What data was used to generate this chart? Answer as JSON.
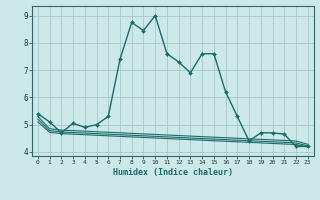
{
  "xlabel": "Humidex (Indice chaleur)",
  "background_color": "#cce8e8",
  "grid_color": "#b8d4d4",
  "line_color": "#1a6b6b",
  "xlim": [
    -0.5,
    23.5
  ],
  "ylim": [
    3.85,
    9.35
  ],
  "yticks": [
    4,
    5,
    6,
    7,
    8,
    9
  ],
  "xticks": [
    0,
    1,
    2,
    3,
    4,
    5,
    6,
    7,
    8,
    9,
    10,
    11,
    12,
    13,
    14,
    15,
    16,
    17,
    18,
    19,
    20,
    21,
    22,
    23
  ],
  "curve1_x": [
    0,
    1,
    2,
    3,
    4,
    5,
    6,
    7,
    8,
    9,
    10,
    11,
    12,
    13,
    14,
    15,
    16,
    17,
    18,
    19,
    20,
    21,
    22,
    23
  ],
  "curve1_y": [
    5.4,
    5.1,
    4.7,
    5.05,
    4.9,
    5.0,
    5.3,
    7.4,
    8.75,
    8.45,
    9.0,
    7.6,
    7.3,
    6.9,
    7.6,
    7.6,
    6.2,
    5.3,
    4.4,
    4.7,
    4.7,
    4.65,
    4.2,
    4.2
  ],
  "curve2_x": [
    0,
    1,
    2,
    3,
    4,
    5,
    6,
    7,
    8,
    9,
    10,
    11,
    12,
    13,
    14,
    15,
    16,
    17,
    18,
    19,
    20,
    21,
    22,
    23
  ],
  "curve2_y": [
    5.3,
    4.85,
    4.8,
    4.78,
    4.76,
    4.74,
    4.72,
    4.7,
    4.68,
    4.66,
    4.64,
    4.62,
    4.6,
    4.58,
    4.56,
    4.54,
    4.52,
    4.5,
    4.48,
    4.46,
    4.44,
    4.42,
    4.4,
    4.28
  ],
  "curve3_x": [
    0,
    1,
    2,
    3,
    4,
    5,
    6,
    7,
    8,
    9,
    10,
    11,
    12,
    13,
    14,
    15,
    16,
    17,
    18,
    19,
    20,
    21,
    22,
    23
  ],
  "curve3_y": [
    5.2,
    4.78,
    4.73,
    4.71,
    4.69,
    4.67,
    4.65,
    4.63,
    4.61,
    4.59,
    4.57,
    4.55,
    4.53,
    4.51,
    4.49,
    4.47,
    4.45,
    4.43,
    4.41,
    4.39,
    4.37,
    4.35,
    4.33,
    4.22
  ],
  "curve4_x": [
    0,
    1,
    2,
    3,
    4,
    5,
    6,
    7,
    8,
    9,
    10,
    11,
    12,
    13,
    14,
    15,
    16,
    17,
    18,
    19,
    20,
    21,
    22,
    23
  ],
  "curve4_y": [
    5.1,
    4.72,
    4.67,
    4.65,
    4.63,
    4.61,
    4.59,
    4.57,
    4.55,
    4.53,
    4.51,
    4.49,
    4.47,
    4.45,
    4.43,
    4.41,
    4.39,
    4.37,
    4.35,
    4.33,
    4.31,
    4.29,
    4.27,
    4.18
  ]
}
